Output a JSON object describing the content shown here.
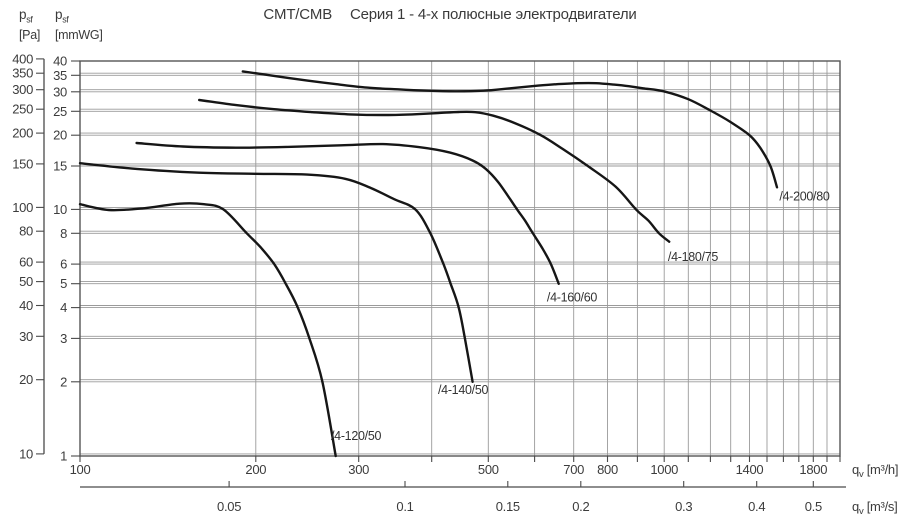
{
  "title": {
    "product": "CMT/CMB",
    "series_name": "Серия 1 - 4-х полюсные электродвигатели"
  },
  "y_axis_pa": {
    "quantity": "p",
    "quantity_sub": "sf",
    "unit": "[Pa]"
  },
  "y_axis_mmwg": {
    "quantity": "p",
    "quantity_sub": "sf",
    "unit": "[mmWG]"
  },
  "x_axis_m3h": {
    "quantity": "q",
    "quantity_sub": "v",
    "unit": "[m³/h]"
  },
  "x_axis_m3s": {
    "quantity": "q",
    "quantity_sub": "v",
    "unit": "[m³/s]"
  },
  "colors": {
    "curve": "#161616",
    "grid": "#9a9a9a",
    "border": "#555555",
    "axis": "#4a4a4a",
    "text": "#3c3c3c"
  },
  "chart_data": {
    "type": "line",
    "title": "CMT/CMB Серия 1 - 4-х полюсные электродвигатели",
    "x_scale": "log",
    "y_scale": "log",
    "x_unit": "m³/h",
    "y_unit": "mmWG",
    "x_range": [
      100,
      2000
    ],
    "y_range_mmwg": [
      1,
      40
    ],
    "pa_per_mmwg": 9.80665,
    "grid": true,
    "x_minor_step": 100,
    "x_ticks_labeled": [
      100,
      200,
      300,
      500,
      700,
      800,
      1000,
      1400,
      1800
    ],
    "y_ticks_mmwg": [
      40,
      35,
      30,
      25,
      20,
      15,
      10,
      8,
      6,
      5,
      4,
      3,
      2,
      1
    ],
    "y_ticks_pa": [
      400,
      350,
      300,
      250,
      200,
      150,
      100,
      80,
      60,
      50,
      40,
      30,
      20,
      10
    ],
    "x_ticks_m3s": [
      "0.05",
      "0.1",
      "0.15",
      "0.2",
      "0.3",
      "0.4",
      "0.5"
    ],
    "series": [
      {
        "name": "/4-120/50",
        "label_at": [
          269,
          1.26
        ],
        "points": [
          [
            100,
            10.5
          ],
          [
            112,
            9.95
          ],
          [
            128,
            10.1
          ],
          [
            148,
            10.55
          ],
          [
            163,
            10.5
          ],
          [
            176,
            10
          ],
          [
            193,
            8
          ],
          [
            204,
            7
          ],
          [
            215,
            6
          ],
          [
            225,
            5
          ],
          [
            236,
            4
          ],
          [
            247,
            3
          ],
          [
            260,
            2
          ],
          [
            274,
            1
          ]
        ]
      },
      {
        "name": "/4-140/50",
        "label_at": [
          410,
          1.94
        ],
        "points": [
          [
            100,
            15.4
          ],
          [
            125,
            14.6
          ],
          [
            160,
            14.1
          ],
          [
            200,
            13.95
          ],
          [
            245,
            13.85
          ],
          [
            285,
            13.3
          ],
          [
            315,
            12.2
          ],
          [
            345,
            11
          ],
          [
            375,
            10
          ],
          [
            398,
            8
          ],
          [
            419,
            6
          ],
          [
            431,
            5
          ],
          [
            445,
            4
          ],
          [
            456,
            3
          ],
          [
            470,
            2
          ]
        ]
      },
      {
        "name": "/4-160/60",
        "label_at": [
          630,
          4.6
        ],
        "points": [
          [
            125,
            18.6
          ],
          [
            150,
            18
          ],
          [
            185,
            17.8
          ],
          [
            230,
            17.95
          ],
          [
            280,
            18.2
          ],
          [
            330,
            18.4
          ],
          [
            380,
            17.9
          ],
          [
            430,
            17
          ],
          [
            470,
            15.8
          ],
          [
            495,
            14.6
          ],
          [
            520,
            12.9
          ],
          [
            545,
            11
          ],
          [
            560,
            10
          ],
          [
            578,
            9
          ],
          [
            596,
            8
          ],
          [
            620,
            6.9
          ],
          [
            640,
            6
          ],
          [
            660,
            5
          ]
        ]
      },
      {
        "name": "/4-180/75",
        "label_at": [
          1015,
          6.7
        ],
        "points": [
          [
            160,
            27.8
          ],
          [
            185,
            26.5
          ],
          [
            215,
            25.5
          ],
          [
            250,
            24.8
          ],
          [
            290,
            24.3
          ],
          [
            330,
            24.15
          ],
          [
            370,
            24.3
          ],
          [
            410,
            24.6
          ],
          [
            445,
            24.85
          ],
          [
            475,
            24.8
          ],
          [
            510,
            24
          ],
          [
            555,
            22.4
          ],
          [
            615,
            20
          ],
          [
            670,
            17.6
          ],
          [
            740,
            15
          ],
          [
            825,
            12.4
          ],
          [
            895,
            10
          ],
          [
            940,
            9
          ],
          [
            980,
            8
          ],
          [
            1020,
            7.4
          ]
        ]
      },
      {
        "name": "/4-200/80",
        "label_at": [
          1575,
          11.8
        ],
        "points": [
          [
            190,
            36.3
          ],
          [
            215,
            34.8
          ],
          [
            245,
            33.3
          ],
          [
            275,
            32.2
          ],
          [
            310,
            31.2
          ],
          [
            350,
            30.7
          ],
          [
            395,
            30.3
          ],
          [
            440,
            30.15
          ],
          [
            490,
            30.3
          ],
          [
            545,
            31
          ],
          [
            600,
            31.7
          ],
          [
            655,
            32.2
          ],
          [
            710,
            32.5
          ],
          [
            765,
            32.5
          ],
          [
            820,
            32.1
          ],
          [
            870,
            31.6
          ],
          [
            920,
            31
          ],
          [
            1000,
            30.1
          ],
          [
            1100,
            28
          ],
          [
            1200,
            25.2
          ],
          [
            1300,
            22.6
          ],
          [
            1400,
            20
          ],
          [
            1460,
            17.8
          ],
          [
            1520,
            15
          ],
          [
            1560,
            12.3
          ]
        ]
      }
    ]
  }
}
